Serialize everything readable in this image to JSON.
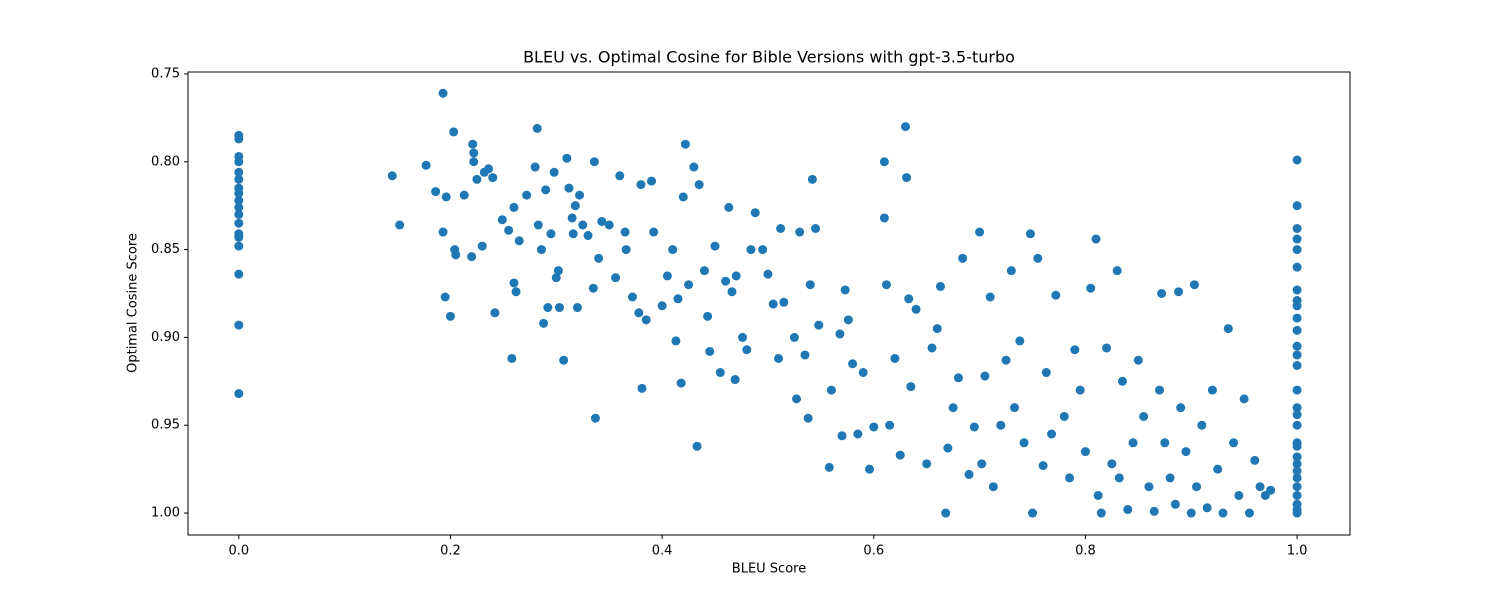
{
  "chart_data": {
    "type": "scatter",
    "title": "BLEU vs. Optimal Cosine for Bible Versions with gpt-3.5-turbo",
    "x_label": "BLEU Score",
    "y_label": "Optimal Cosine Score",
    "color": "#1f77b4",
    "xlim": [
      -0.048,
      1.05
    ],
    "ylim": [
      0.7489,
      1.0125
    ],
    "y_inverted": true,
    "grid": false,
    "xticks": [
      {
        "value": 0,
        "label": "0.0"
      },
      0.2,
      0.4,
      0.6,
      0.8,
      {
        "value": 1,
        "label": "1.0"
      }
    ],
    "yticks": [
      0.75,
      {
        "value": 0.8,
        "label": "0.80"
      },
      0.85,
      {
        "value": 0.9,
        "label": "0.90"
      },
      0.95,
      {
        "value": 1,
        "label": "1.00"
      }
    ],
    "x": [
      0,
      0,
      0,
      0,
      0,
      0,
      0,
      0,
      0,
      0,
      0,
      0,
      0,
      0,
      0,
      0,
      0,
      0,
      1,
      1,
      1,
      1,
      1,
      1,
      1,
      1,
      1,
      1,
      1,
      1,
      1,
      1,
      1,
      1,
      1,
      1,
      1,
      1,
      1,
      1,
      1,
      1,
      1,
      1,
      1,
      1,
      1,
      0.145,
      0.152,
      0.177,
      0.186,
      0.193,
      0.193,
      0.195,
      0.196,
      0.2,
      0.203,
      0.204,
      0.205,
      0.213,
      0.22,
      0.221,
      0.222,
      0.222,
      0.225,
      0.23,
      0.232,
      0.236,
      0.24,
      0.242,
      0.249,
      0.255,
      0.258,
      0.26,
      0.26,
      0.262,
      0.265,
      0.272,
      0.28,
      0.282,
      0.283,
      0.286,
      0.288,
      0.29,
      0.292,
      0.295,
      0.298,
      0.3,
      0.302,
      0.303,
      0.307,
      0.31,
      0.312,
      0.315,
      0.316,
      0.318,
      0.32,
      0.322,
      0.325,
      0.33,
      0.335,
      0.336,
      0.337,
      0.34,
      0.343,
      0.35,
      0.356,
      0.36,
      0.365,
      0.366,
      0.372,
      0.378,
      0.38,
      0.381,
      0.385,
      0.39,
      0.392,
      0.4,
      0.405,
      0.41,
      0.413,
      0.415,
      0.418,
      0.42,
      0.422,
      0.425,
      0.43,
      0.433,
      0.435,
      0.44,
      0.443,
      0.445,
      0.45,
      0.455,
      0.46,
      0.463,
      0.466,
      0.469,
      0.47,
      0.476,
      0.48,
      0.484,
      0.488,
      0.495,
      0.5,
      0.505,
      0.51,
      0.512,
      0.515,
      0.525,
      0.527,
      0.53,
      0.535,
      0.538,
      0.54,
      0.542,
      0.545,
      0.548,
      0.558,
      0.56,
      0.568,
      0.57,
      0.573,
      0.576,
      0.58,
      0.585,
      0.59,
      0.596,
      0.6,
      0.61,
      0.61,
      0.612,
      0.615,
      0.62,
      0.625,
      0.63,
      0.631,
      0.633,
      0.635,
      0.64,
      0.65,
      0.655,
      0.66,
      0.663,
      0.668,
      0.67,
      0.675,
      0.68,
      0.684,
      0.69,
      0.695,
      0.7,
      0.702,
      0.705,
      0.71,
      0.713,
      0.72,
      0.725,
      0.73,
      0.733,
      0.738,
      0.742,
      0.748,
      0.75,
      0.755,
      0.76,
      0.763,
      0.768,
      0.772,
      0.78,
      0.785,
      0.79,
      0.795,
      0.8,
      0.805,
      0.81,
      0.812,
      0.815,
      0.82,
      0.825,
      0.83,
      0.832,
      0.835,
      0.84,
      0.845,
      0.85,
      0.855,
      0.86,
      0.865,
      0.87,
      0.872,
      0.875,
      0.88,
      0.885,
      0.888,
      0.89,
      0.895,
      0.9,
      0.903,
      0.905,
      0.91,
      0.915,
      0.92,
      0.925,
      0.93,
      0.935,
      0.94,
      0.945,
      0.95,
      0.955,
      0.96,
      0.965,
      0.97,
      0.975
    ],
    "values": [
      0.785,
      0.787,
      0.797,
      0.8,
      0.806,
      0.81,
      0.815,
      0.818,
      0.822,
      0.826,
      0.83,
      0.835,
      0.841,
      0.843,
      0.848,
      0.864,
      0.893,
      0.932,
      0.799,
      0.825,
      0.838,
      0.844,
      0.85,
      0.86,
      0.873,
      0.879,
      0.882,
      0.889,
      0.896,
      0.905,
      0.91,
      0.916,
      0.93,
      0.94,
      0.944,
      0.95,
      0.96,
      0.962,
      0.968,
      0.972,
      0.976,
      0.98,
      0.985,
      0.99,
      0.995,
      0.998,
      1.0,
      0.808,
      0.836,
      0.802,
      0.817,
      0.761,
      0.84,
      0.877,
      0.82,
      0.888,
      0.783,
      0.85,
      0.853,
      0.819,
      0.854,
      0.79,
      0.8,
      0.795,
      0.81,
      0.848,
      0.806,
      0.804,
      0.809,
      0.886,
      0.833,
      0.839,
      0.912,
      0.826,
      0.869,
      0.874,
      0.845,
      0.819,
      0.803,
      0.781,
      0.836,
      0.85,
      0.892,
      0.816,
      0.883,
      0.841,
      0.806,
      0.866,
      0.862,
      0.883,
      0.913,
      0.798,
      0.815,
      0.832,
      0.841,
      0.825,
      0.883,
      0.819,
      0.836,
      0.842,
      0.872,
      0.8,
      0.946,
      0.855,
      0.834,
      0.836,
      0.866,
      0.808,
      0.84,
      0.85,
      0.877,
      0.886,
      0.813,
      0.929,
      0.89,
      0.811,
      0.84,
      0.882,
      0.865,
      0.85,
      0.902,
      0.878,
      0.926,
      0.82,
      0.79,
      0.87,
      0.803,
      0.962,
      0.813,
      0.862,
      0.888,
      0.908,
      0.848,
      0.92,
      0.868,
      0.826,
      0.874,
      0.924,
      0.865,
      0.9,
      0.907,
      0.85,
      0.829,
      0.85,
      0.864,
      0.881,
      0.912,
      0.838,
      0.88,
      0.9,
      0.935,
      0.84,
      0.91,
      0.946,
      0.87,
      0.81,
      0.838,
      0.893,
      0.974,
      0.93,
      0.898,
      0.956,
      0.873,
      0.89,
      0.915,
      0.955,
      0.92,
      0.975,
      0.951,
      0.8,
      0.832,
      0.87,
      0.95,
      0.912,
      0.967,
      0.78,
      0.809,
      0.878,
      0.928,
      0.884,
      0.972,
      0.906,
      0.895,
      0.871,
      1.0,
      0.963,
      0.94,
      0.923,
      0.855,
      0.978,
      0.951,
      0.84,
      0.972,
      0.922,
      0.877,
      0.985,
      0.95,
      0.913,
      0.862,
      0.94,
      0.902,
      0.96,
      0.841,
      1.0,
      0.855,
      0.973,
      0.92,
      0.955,
      0.876,
      0.945,
      0.98,
      0.907,
      0.93,
      0.965,
      0.872,
      0.844,
      0.99,
      1.0,
      0.906,
      0.972,
      0.862,
      0.98,
      0.925,
      0.998,
      0.96,
      0.913,
      0.945,
      0.985,
      0.999,
      0.93,
      0.875,
      0.96,
      0.98,
      0.995,
      0.874,
      0.94,
      0.965,
      1.0,
      0.87,
      0.985,
      0.95,
      0.997,
      0.93,
      0.975,
      1.0,
      0.895,
      0.96,
      0.99,
      0.935,
      1.0,
      0.97,
      0.985,
      0.99,
      0.987
    ]
  }
}
